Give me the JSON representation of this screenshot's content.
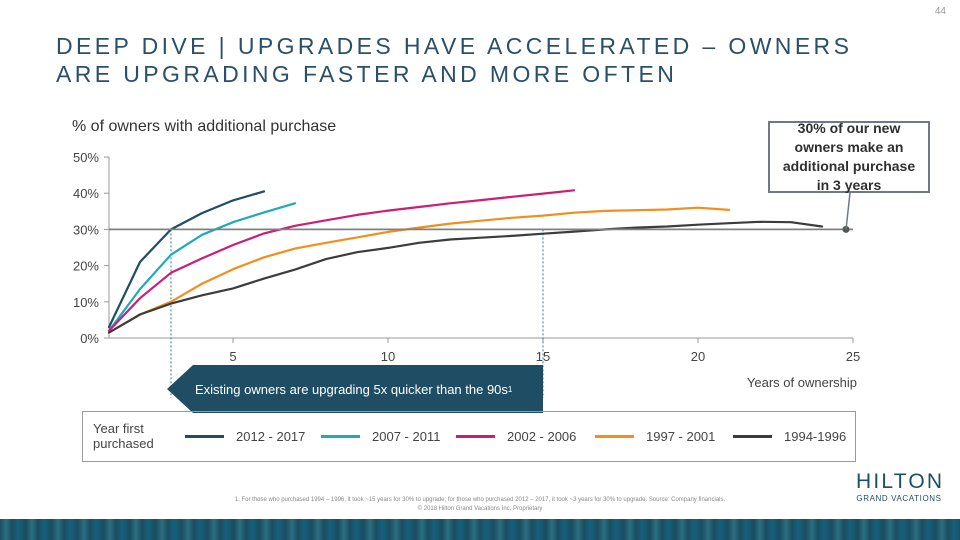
{
  "page_number": "44",
  "title": "DEEP DIVE | UPGRADES HAVE ACCELERATED – OWNERS ARE UPGRADING FASTER AND MORE OFTEN",
  "callout": "30% of our new owners make an additional purchase in 3 years",
  "banner": {
    "text": "Existing owners are upgrading 5x quicker than the 90s",
    "sup": "1"
  },
  "legend_heading": "Year first purchased",
  "logo": {
    "main": "HILTON",
    "sub": "GRAND VACATIONS"
  },
  "footnote": {
    "line1": "1. For those who purchased 1994 – 1996, it took ~15 years for 30% to upgrade; for those who purchased 2012 – 2017, it took ~3 years for 30% to upgrade. Source: Company financials.",
    "line2": "© 2018 Hilton Grand Vacations Inc. Proprietary"
  },
  "colors": {
    "navy": "#1f4d63",
    "teal": "#20aab8",
    "magenta": "#cc1d78",
    "orange": "#f28e1c",
    "gray": "#3c3c3c",
    "reference": "#808080"
  },
  "chart_data": {
    "type": "line",
    "title": "% of owners with additional purchase",
    "xlabel": "Years of ownership",
    "ylabel": "",
    "xlim": [
      1,
      25
    ],
    "ylim": [
      0,
      50
    ],
    "x_ticks": [
      5,
      10,
      15,
      20,
      25
    ],
    "y_ticks": [
      0,
      10,
      20,
      30,
      40,
      50
    ],
    "y_tick_labels": [
      "0%",
      "10%",
      "20%",
      "30%",
      "40%",
      "50%"
    ],
    "grid": false,
    "reference_line": {
      "y": 30,
      "x_end": 25
    },
    "dashed_markers_x": [
      3,
      15
    ],
    "series": [
      {
        "name": "2012 - 2017",
        "color": "#1f4d63",
        "x": [
          1,
          2,
          3,
          4,
          5,
          6
        ],
        "y": [
          3,
          21,
          30,
          34.5,
          38,
          40.5
        ]
      },
      {
        "name": "2007 - 2011",
        "color": "#20aab8",
        "x": [
          1,
          2,
          3,
          4,
          5,
          6,
          7
        ],
        "y": [
          2,
          13.5,
          23,
          28.5,
          32,
          34.7,
          37.2
        ]
      },
      {
        "name": "2002 - 2006",
        "color": "#cc1d78",
        "x": [
          1,
          2,
          3,
          4,
          5,
          6,
          7,
          8,
          9,
          10,
          11,
          12,
          13,
          14,
          15,
          16
        ],
        "y": [
          2,
          11,
          18,
          22,
          25.7,
          28.9,
          31,
          32.5,
          34,
          35.2,
          36.2,
          37.2,
          38.1,
          39,
          39.9,
          40.8
        ]
      },
      {
        "name": "1997 - 2001",
        "color": "#f28e1c",
        "x": [
          1,
          2,
          3,
          4,
          5,
          6,
          7,
          8,
          9,
          10,
          11,
          12,
          13,
          14,
          15,
          16,
          17,
          18,
          19,
          20,
          21
        ],
        "y": [
          1.5,
          6.5,
          10,
          15,
          19,
          22.3,
          24.7,
          26.3,
          27.8,
          29.3,
          30.5,
          31.6,
          32.4,
          33.2,
          33.8,
          34.6,
          35.1,
          35.3,
          35.5,
          36,
          35.4
        ]
      },
      {
        "name": "1994-1996",
        "color": "#3c3c3c",
        "x": [
          1,
          2,
          3,
          4,
          5,
          6,
          7,
          8,
          9,
          10,
          11,
          12,
          13,
          14,
          15,
          16,
          17,
          18,
          19,
          20,
          21,
          22,
          23,
          24
        ],
        "y": [
          1.5,
          6.5,
          9.5,
          11.8,
          13.7,
          16.4,
          18.9,
          21.8,
          23.7,
          24.9,
          26.3,
          27.2,
          27.7,
          28.2,
          28.8,
          29.4,
          30,
          30.5,
          30.8,
          31.3,
          31.7,
          32.1,
          32,
          30.8
        ]
      }
    ]
  }
}
